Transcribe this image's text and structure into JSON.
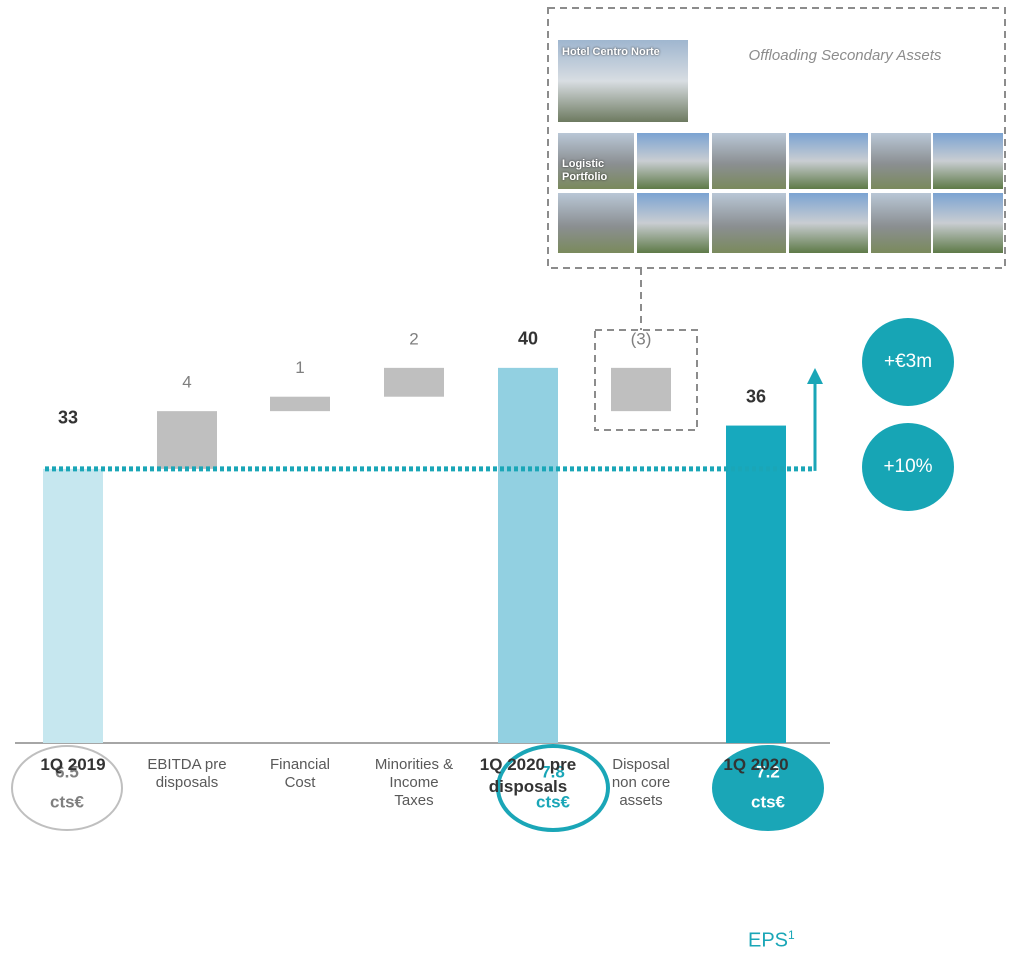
{
  "chart_data": {
    "type": "waterfall",
    "categories": [
      "1Q 2019",
      "EBITDA pre disposals",
      "Financial Cost",
      "Minorities & Income Taxes",
      "1Q 2020 pre disposals",
      "Disposal non core assets",
      "1Q 2020"
    ],
    "values": [
      33,
      4,
      1,
      2,
      40,
      -3,
      36
    ],
    "value_labels": [
      "33",
      "4",
      "1",
      "2",
      "40",
      "(3)",
      "36"
    ],
    "measure": [
      "absolute",
      "relative",
      "relative",
      "relative",
      "absolute",
      "relative",
      "absolute"
    ],
    "colors": [
      "#c6e7ef",
      "#bfbfbf",
      "#bfbfbf",
      "#bfbfbf",
      "#92d0e1",
      "#bfbfbf",
      "#17a9be"
    ],
    "ylim": [
      14,
      42
    ],
    "badges": [
      "+€3m",
      "+10%"
    ],
    "eps": {
      "title": "EPS",
      "note": "1",
      "unit": "cts€",
      "values": [
        6.5,
        7.8,
        7.2
      ],
      "colors": [
        "#bfbfbf",
        "#1aa6b7",
        "#1aa6b7"
      ],
      "filled": [
        false,
        false,
        true
      ]
    }
  },
  "inset": {
    "title": "Offloading Secondary Assets",
    "photo_labels": [
      "Hotel Centro Norte",
      "Logistic Portfolio"
    ]
  }
}
